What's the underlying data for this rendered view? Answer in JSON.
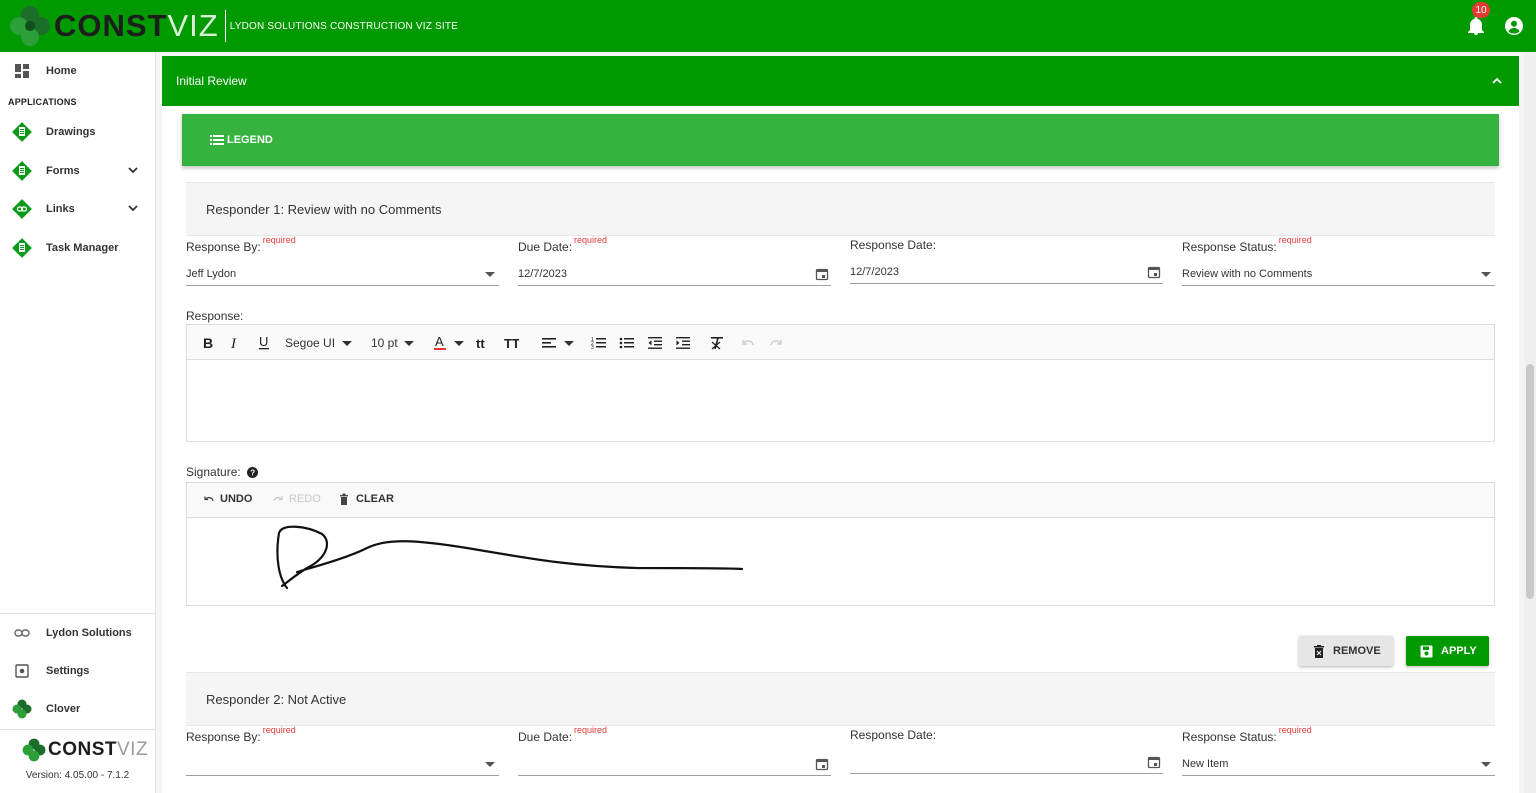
{
  "app": {
    "logo_bold": "CONST",
    "logo_light": "VIZ",
    "site_title": "LYDON SOLUTIONS CONSTRUCTION VIZ SITE",
    "notification_count": "10"
  },
  "sidebar": {
    "home": "Home",
    "section_label": "APPLICATIONS",
    "items": [
      {
        "label": "Drawings",
        "icon": "drawing-doc-icon"
      },
      {
        "label": "Forms",
        "icon": "form-doc-icon"
      },
      {
        "label": "Links",
        "icon": "link-icon"
      },
      {
        "label": "Task Manager",
        "icon": "task-doc-icon"
      }
    ],
    "bottom_items": [
      {
        "label": "Lydon Solutions",
        "icon": "link-icon"
      },
      {
        "label": "Settings",
        "icon": "settings-icon"
      },
      {
        "label": "Clover",
        "icon": "clover-icon"
      }
    ],
    "footer_logo_bold": "CONST",
    "footer_logo_light": "VIZ",
    "version": "Version: 4.05.00 - 7.1.2"
  },
  "panel": {
    "title": "Initial Review",
    "legend_label": "LEGEND"
  },
  "responder1": {
    "header": "Responder 1: Review with no Comments",
    "response_by_label": "Response By:",
    "response_by_value": "Jeff Lydon",
    "due_date_label": "Due Date:",
    "due_date_value": "12/7/2023",
    "response_date_label": "Response Date:",
    "response_date_value": "12/7/2023",
    "response_status_label": "Response Status:",
    "response_status_value": "Review with no Comments",
    "required": "required",
    "response_label": "Response:",
    "font_name": "Segoe UI",
    "font_size": "10 pt",
    "signature_label": "Signature:",
    "undo": "UNDO",
    "redo": "REDO",
    "clear": "CLEAR",
    "remove": "REMOVE",
    "apply": "APPLY"
  },
  "responder2": {
    "header": "Responder 2: Not Active",
    "response_by_label": "Response By:",
    "response_by_value": "",
    "due_date_label": "Due Date:",
    "due_date_value": "",
    "response_date_label": "Response Date:",
    "response_date_value": "",
    "response_status_label": "Response Status:",
    "response_status_value": "New Item",
    "required": "required"
  },
  "colors": {
    "brand_green": "#009900",
    "legend_green": "#36b33e",
    "required_red": "#e53935"
  }
}
